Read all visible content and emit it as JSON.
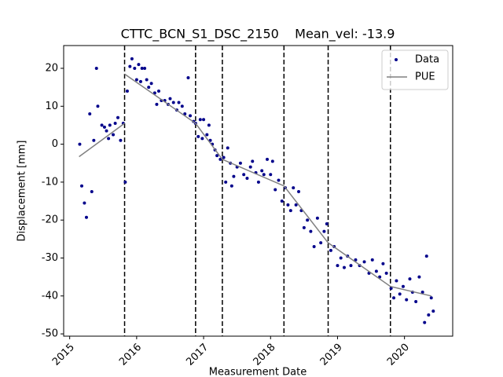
{
  "chart_data": {
    "type": "scatter",
    "title": "CTTC_BCN_S1_DSC_2150    Mean_vel: -13.9",
    "xlabel": "Measurement Date",
    "ylabel": "Displacement [mm]",
    "xlim": [
      2014.91,
      2020.72
    ],
    "ylim": [
      -50.6,
      26
    ],
    "xticks": [
      2015,
      2016,
      2017,
      2018,
      2019,
      2020
    ],
    "yticks": [
      20,
      10,
      0,
      -10,
      -20,
      -30,
      -40,
      -50
    ],
    "legend": "upper right",
    "vlines": [
      2015.82,
      2016.88,
      2017.28,
      2018.2,
      2018.86,
      2019.79
    ],
    "vline_color": "#000000",
    "series": [
      {
        "name": "Data",
        "type": "scatter",
        "color": "#00008b",
        "x": [
          2015.15,
          2015.18,
          2015.22,
          2015.25,
          2015.3,
          2015.33,
          2015.36,
          2015.4,
          2015.42,
          2015.48,
          2015.52,
          2015.55,
          2015.58,
          2015.6,
          2015.65,
          2015.68,
          2015.72,
          2015.76,
          2015.8,
          2015.83,
          2015.86,
          2015.9,
          2015.93,
          2015.97,
          2016.0,
          2016.03,
          2016.06,
          2016.08,
          2016.12,
          2016.15,
          2016.18,
          2016.22,
          2016.27,
          2016.3,
          2016.33,
          2016.37,
          2016.42,
          2016.47,
          2016.5,
          2016.55,
          2016.6,
          2016.63,
          2016.68,
          2016.72,
          2016.77,
          2016.8,
          2016.85,
          2016.88,
          2016.92,
          2016.95,
          2016.98,
          2017.0,
          2017.05,
          2017.08,
          2017.1,
          2017.13,
          2017.17,
          2017.2,
          2017.25,
          2017.3,
          2017.33,
          2017.36,
          2017.4,
          2017.42,
          2017.45,
          2017.5,
          2017.55,
          2017.6,
          2017.65,
          2017.7,
          2017.73,
          2017.78,
          2017.82,
          2017.87,
          2017.9,
          2017.95,
          2018.0,
          2018.03,
          2018.07,
          2018.12,
          2018.17,
          2018.22,
          2018.26,
          2018.3,
          2018.34,
          2018.38,
          2018.42,
          2018.46,
          2018.5,
          2018.55,
          2018.6,
          2018.65,
          2018.7,
          2018.75,
          2018.8,
          2018.84,
          2018.9,
          2018.95,
          2019.0,
          2019.05,
          2019.1,
          2019.15,
          2019.2,
          2019.27,
          2019.33,
          2019.4,
          2019.47,
          2019.52,
          2019.58,
          2019.63,
          2019.68,
          2019.73,
          2019.8,
          2019.84,
          2019.88,
          2019.93,
          2019.98,
          2020.03,
          2020.08,
          2020.12,
          2020.17,
          2020.22,
          2020.27,
          2020.3,
          2020.33,
          2020.36,
          2020.4,
          2020.43
        ],
        "values": [
          0,
          -11,
          -15.5,
          -19.3,
          8,
          -12.5,
          1,
          20,
          10,
          5,
          4.5,
          3.5,
          1.5,
          5,
          2.5,
          5.5,
          7,
          1,
          5.5,
          -10,
          14,
          20.5,
          22.5,
          20,
          17,
          21,
          16.5,
          20,
          20,
          17,
          15,
          16,
          13.5,
          10.5,
          14,
          11.5,
          11.5,
          10.5,
          12,
          11,
          9,
          11,
          10,
          8,
          17.5,
          7.5,
          6,
          5.5,
          2,
          6.5,
          1.5,
          6.5,
          2.5,
          5,
          1,
          0,
          -1.5,
          -3,
          -4,
          -3.5,
          -10,
          -1,
          -5,
          -11,
          -8.5,
          -6,
          -5,
          -8,
          -9,
          -6,
          -4.5,
          -7.5,
          -10,
          -7,
          -8,
          -4,
          -8,
          -4.5,
          -12,
          -9.5,
          -15,
          -11.5,
          -16,
          -17.5,
          -11.5,
          -16,
          -12.5,
          -17.5,
          -22,
          -20,
          -23,
          -27,
          -19.5,
          -26,
          -23,
          -21,
          -28,
          -27,
          -32,
          -30,
          -32.5,
          -29.5,
          -32,
          -30.5,
          -32,
          -31,
          -34,
          -30.5,
          -33.5,
          -35,
          -31.5,
          -34,
          -38,
          -40.5,
          -36,
          -39.5,
          -37.5,
          -41,
          -35.5,
          -39,
          -41.5,
          -35,
          -39,
          -47,
          -29.5,
          -45,
          -40.5,
          -44
        ]
      },
      {
        "name": "PUE",
        "type": "line",
        "color": "#808080",
        "x": [
          2015.14,
          2015.82,
          null,
          2015.82,
          2016.88,
          2017.28,
          2018.2,
          2018.86,
          2019.79,
          2020.4
        ],
        "values": [
          -3.3,
          5.5,
          null,
          18.5,
          5.5,
          -4,
          -11,
          -26,
          -37.5,
          -40
        ]
      }
    ]
  }
}
